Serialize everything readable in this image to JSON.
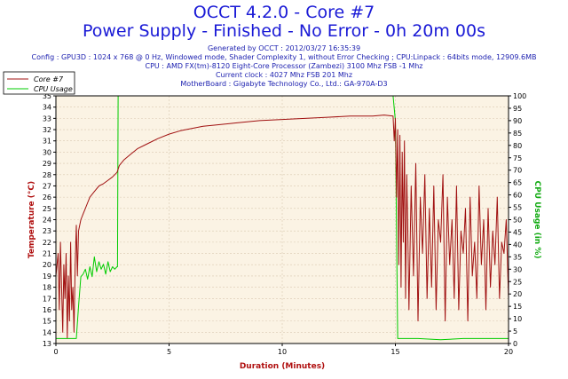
{
  "header": {
    "title": "OCCT 4.2.0 - Core #7",
    "subtitle": "Power Supply - Finished - No Error - 0h 20m 00s",
    "info_lines": [
      "Generated by OCCT : 2012/03/27 16:35:39",
      "Config : GPU3D : 1024 x 768 @ 0 Hz, Windowed mode, Shader Complexity 1, without Error Checking ; CPU:Linpack : 64bits mode, 12909.6MB",
      "CPU : AMD FX(tm)-8120 Eight-Core Processor (Zambezi) 3100 Mhz FSB -1 Mhz",
      "Current clock : 4027 Mhz FSB 201 Mhz",
      "MotherBoard : Gigabyte Technology Co., Ltd.: GA-970A-D3"
    ]
  },
  "chart_data": {
    "type": "line",
    "xlabel": "Duration (Minutes)",
    "ylabel_left": "Temperature (°C)",
    "ylabel_right": "CPU Usage (in %)",
    "xlim": [
      0,
      20
    ],
    "ylim_left": [
      13,
      35
    ],
    "ylim_right": [
      0,
      100
    ],
    "x_ticks": [
      0,
      5,
      10,
      15,
      20
    ],
    "y_ticks_left": [
      13,
      14,
      15,
      16,
      17,
      18,
      19,
      20,
      21,
      22,
      23,
      24,
      25,
      26,
      27,
      28,
      29,
      30,
      31,
      32,
      33,
      34,
      35
    ],
    "y_ticks_right": [
      0,
      5,
      10,
      15,
      20,
      25,
      30,
      35,
      40,
      45,
      50,
      55,
      60,
      65,
      70,
      75,
      80,
      85,
      90,
      95,
      100
    ],
    "grid": true,
    "legend_position": "top-left",
    "colors": {
      "core": "#a01010",
      "cpu": "#00cc00",
      "plot_bg": "#fbf3e4",
      "grid": "#d9c8b0",
      "axis_label": "#b01010",
      "right_label": "#11aa11",
      "title": "#1a1ad6"
    },
    "series": [
      {
        "name": "Core #7",
        "axis": "left",
        "x": [
          0,
          0.1,
          0.15,
          0.2,
          0.25,
          0.3,
          0.35,
          0.4,
          0.45,
          0.5,
          0.55,
          0.6,
          0.65,
          0.7,
          0.75,
          0.8,
          0.85,
          0.9,
          0.95,
          1,
          1.1,
          1.2,
          1.3,
          1.4,
          1.5,
          1.7,
          1.9,
          2.1,
          2.3,
          2.5,
          2.7,
          2.8,
          3,
          3.3,
          3.6,
          4,
          4.5,
          5,
          5.5,
          6,
          6.5,
          7,
          8,
          9,
          10,
          11,
          12,
          13,
          14,
          14.5,
          14.9,
          14.95,
          15,
          15.05,
          15.1,
          15.15,
          15.2,
          15.25,
          15.3,
          15.35,
          15.4,
          15.45,
          15.5,
          15.55,
          15.6,
          15.7,
          15.8,
          15.9,
          16,
          16.1,
          16.2,
          16.3,
          16.4,
          16.5,
          16.6,
          16.7,
          16.8,
          16.9,
          17,
          17.1,
          17.2,
          17.3,
          17.4,
          17.5,
          17.6,
          17.7,
          17.8,
          17.9,
          18,
          18.1,
          18.2,
          18.3,
          18.4,
          18.5,
          18.6,
          18.7,
          18.8,
          18.9,
          19,
          19.1,
          19.2,
          19.3,
          19.4,
          19.5,
          19.6,
          19.7,
          19.8,
          19.9,
          20
        ],
        "values": [
          19,
          21,
          16,
          22,
          18,
          14,
          20,
          17,
          21,
          13.5,
          19,
          15,
          22,
          16,
          18,
          14,
          20,
          23.5,
          19,
          23,
          24,
          24.5,
          25,
          25.5,
          26,
          26.5,
          27,
          27.2,
          27.5,
          27.8,
          28.2,
          28.8,
          29.3,
          29.8,
          30.3,
          30.7,
          31.2,
          31.6,
          31.9,
          32.1,
          32.3,
          32.4,
          32.6,
          32.8,
          32.9,
          33.0,
          33.1,
          33.2,
          33.2,
          33.3,
          33.2,
          31,
          33,
          26,
          32,
          20,
          31.5,
          18,
          30,
          22,
          31,
          17,
          28,
          23,
          16,
          27,
          19,
          29,
          15,
          26,
          21,
          28,
          17,
          25,
          18,
          27,
          16,
          24,
          22,
          28,
          15,
          26,
          20,
          24,
          17,
          27,
          16,
          23,
          21,
          25,
          15,
          26,
          19,
          22,
          17,
          27,
          20,
          24,
          16,
          25,
          18,
          23,
          20,
          26,
          17,
          22,
          21,
          24,
          17
        ]
      },
      {
        "name": "CPU Usage",
        "axis": "right",
        "x": [
          0,
          0.9,
          1.0,
          1.1,
          1.2,
          1.3,
          1.4,
          1.5,
          1.6,
          1.7,
          1.8,
          1.9,
          2.0,
          2.1,
          2.2,
          2.3,
          2.4,
          2.5,
          2.6,
          2.7,
          2.72,
          2.75,
          2.8,
          5,
          10,
          14.9,
          15.0,
          15.1,
          16,
          17,
          18,
          19,
          20
        ],
        "values": [
          2,
          2,
          15,
          27,
          28,
          30,
          26,
          31,
          27,
          35,
          29,
          33,
          30,
          32,
          28,
          33,
          29,
          31,
          30,
          31,
          31,
          100,
          100,
          100,
          100,
          100,
          90,
          2,
          2,
          1.5,
          2,
          2,
          2
        ]
      }
    ]
  }
}
